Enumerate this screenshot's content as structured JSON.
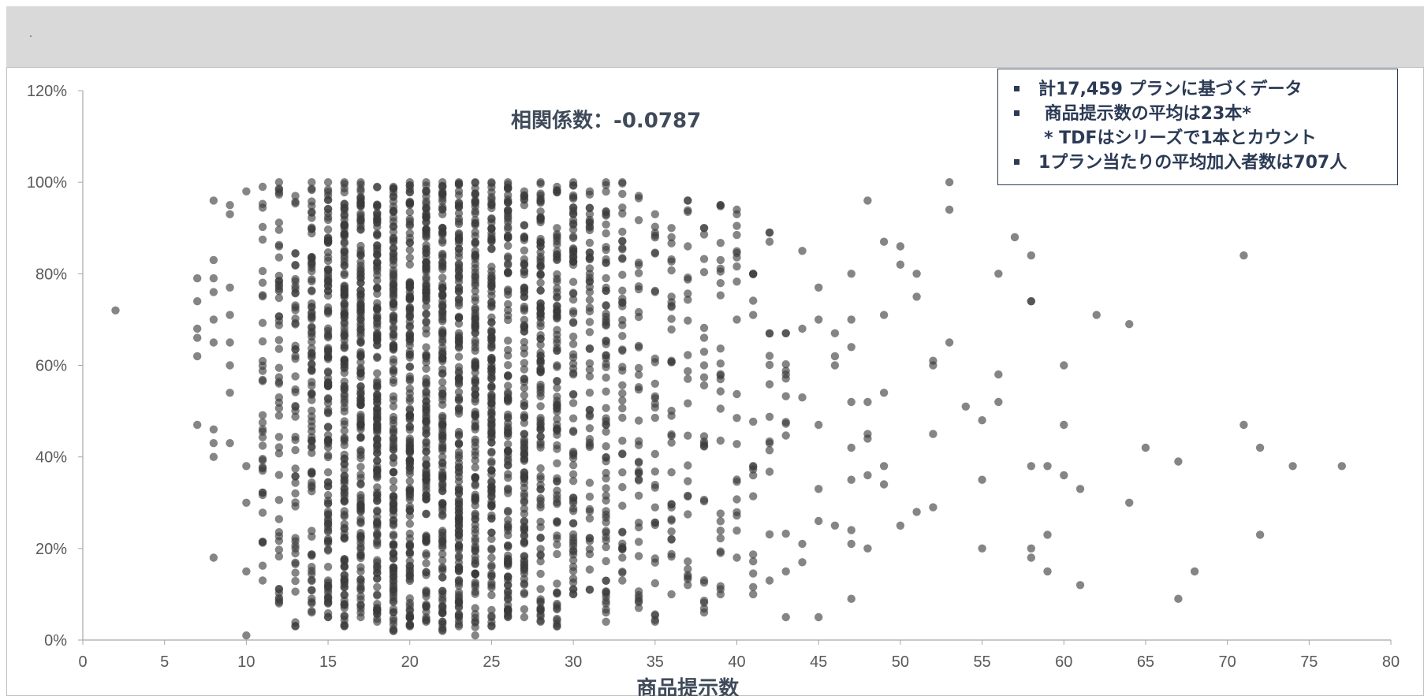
{
  "chart_data": {
    "type": "scatter",
    "title": "",
    "xlabel": "商品提示数",
    "ylabel": "",
    "xlim": [
      0,
      80
    ],
    "ylim": [
      0,
      1.2
    ],
    "x_ticks": [
      "0",
      "5",
      "10",
      "15",
      "20",
      "25",
      "30",
      "35",
      "40",
      "45",
      "50",
      "55",
      "60",
      "65",
      "70",
      "75",
      "80"
    ],
    "y_ticks": [
      "0%",
      "20%",
      "40%",
      "60%",
      "80%",
      "100%",
      "120%"
    ],
    "annotation": "相関係数：-0.0787",
    "marker_color": "#3a3a3a",
    "grid": false,
    "legend": "none",
    "points_note_x": [
      2,
      7,
      8,
      9,
      10,
      11,
      12,
      13,
      14,
      15,
      16,
      17,
      18,
      19,
      20,
      21,
      22,
      23,
      24,
      25,
      26,
      27,
      28,
      29,
      30,
      31,
      32,
      33,
      34,
      35,
      36,
      37,
      38,
      39,
      40,
      41,
      42,
      43,
      44,
      45,
      46,
      47,
      48,
      49,
      50,
      51,
      52,
      53,
      54,
      55,
      56,
      57,
      58,
      59,
      60,
      61,
      62,
      64,
      65,
      67,
      68,
      71,
      72,
      74,
      77
    ],
    "sparse_points": [
      [
        2,
        0.72
      ],
      [
        7,
        0.79
      ],
      [
        7,
        0.74
      ],
      [
        7,
        0.68
      ],
      [
        7,
        0.66
      ],
      [
        7,
        0.62
      ],
      [
        7,
        0.47
      ],
      [
        8,
        0.96
      ],
      [
        8,
        0.83
      ],
      [
        8,
        0.79
      ],
      [
        8,
        0.76
      ],
      [
        8,
        0.7
      ],
      [
        8,
        0.65
      ],
      [
        8,
        0.46
      ],
      [
        8,
        0.43
      ],
      [
        8,
        0.4
      ],
      [
        8,
        0.18
      ],
      [
        9,
        0.95
      ],
      [
        9,
        0.93
      ],
      [
        9,
        0.77
      ],
      [
        9,
        0.71
      ],
      [
        9,
        0.65
      ],
      [
        9,
        0.6
      ],
      [
        9,
        0.54
      ],
      [
        9,
        0.43
      ],
      [
        10,
        0.98
      ],
      [
        10,
        0.01
      ],
      [
        10,
        0.15
      ],
      [
        10,
        0.3
      ],
      [
        10,
        0.38
      ],
      [
        36,
        0.88
      ],
      [
        36,
        0.75
      ],
      [
        37,
        0.96
      ],
      [
        37,
        0.86
      ],
      [
        38,
        0.9
      ],
      [
        38,
        0.6
      ],
      [
        39,
        0.95
      ],
      [
        39,
        0.83
      ],
      [
        40,
        0.93
      ],
      [
        40,
        0.7
      ],
      [
        41,
        0.8
      ],
      [
        41,
        0.71
      ],
      [
        42,
        0.89
      ],
      [
        42,
        0.87
      ],
      [
        42,
        0.67
      ],
      [
        43,
        0.67
      ],
      [
        43,
        0.58
      ],
      [
        44,
        0.85
      ],
      [
        44,
        0.68
      ],
      [
        44,
        0.53
      ],
      [
        44,
        0.21
      ],
      [
        44,
        0.17
      ],
      [
        45,
        0.77
      ],
      [
        45,
        0.7
      ],
      [
        45,
        0.47
      ],
      [
        45,
        0.33
      ],
      [
        45,
        0.26
      ],
      [
        45,
        0.05
      ],
      [
        43,
        0.05
      ],
      [
        46,
        0.67
      ],
      [
        46,
        0.62
      ],
      [
        46,
        0.6
      ],
      [
        46,
        0.25
      ],
      [
        47,
        0.8
      ],
      [
        47,
        0.7
      ],
      [
        47,
        0.64
      ],
      [
        47,
        0.52
      ],
      [
        47,
        0.42
      ],
      [
        47,
        0.35
      ],
      [
        47,
        0.24
      ],
      [
        47,
        0.21
      ],
      [
        47,
        0.09
      ],
      [
        48,
        0.96
      ],
      [
        48,
        0.52
      ],
      [
        48,
        0.45
      ],
      [
        48,
        0.44
      ],
      [
        48,
        0.36
      ],
      [
        48,
        0.2
      ],
      [
        49,
        0.87
      ],
      [
        49,
        0.71
      ],
      [
        49,
        0.54
      ],
      [
        49,
        0.38
      ],
      [
        49,
        0.34
      ],
      [
        50,
        0.86
      ],
      [
        50,
        0.82
      ],
      [
        50,
        0.25
      ],
      [
        51,
        0.8
      ],
      [
        51,
        0.75
      ],
      [
        51,
        0.28
      ],
      [
        52,
        0.61
      ],
      [
        52,
        0.6
      ],
      [
        52,
        0.45
      ],
      [
        52,
        0.29
      ],
      [
        53,
        1.0
      ],
      [
        53,
        0.94
      ],
      [
        53,
        0.65
      ],
      [
        54,
        0.51
      ],
      [
        55,
        0.48
      ],
      [
        55,
        0.35
      ],
      [
        55,
        0.2
      ],
      [
        56,
        0.8
      ],
      [
        56,
        0.58
      ],
      [
        56,
        0.52
      ],
      [
        57,
        0.88
      ],
      [
        58,
        0.84
      ],
      [
        58,
        0.74
      ],
      [
        58,
        0.74
      ],
      [
        58,
        0.38
      ],
      [
        58,
        0.2
      ],
      [
        58,
        0.18
      ],
      [
        59,
        0.38
      ],
      [
        59,
        0.23
      ],
      [
        59,
        0.15
      ],
      [
        60,
        0.6
      ],
      [
        60,
        0.47
      ],
      [
        60,
        0.36
      ],
      [
        61,
        0.33
      ],
      [
        61,
        0.12
      ],
      [
        62,
        0.71
      ],
      [
        64,
        0.69
      ],
      [
        64,
        0.3
      ],
      [
        65,
        0.42
      ],
      [
        67,
        0.39
      ],
      [
        67,
        0.09
      ],
      [
        68,
        0.15
      ],
      [
        71,
        0.84
      ],
      [
        71,
        0.47
      ],
      [
        72,
        0.42
      ],
      [
        72,
        0.23
      ],
      [
        74,
        0.38
      ],
      [
        77,
        0.38
      ]
    ],
    "dense_columns": [
      {
        "x": 11,
        "count": 34,
        "range": [
          0.13,
          0.99
        ]
      },
      {
        "x": 12,
        "count": 48,
        "range": [
          0.08,
          1.0
        ]
      },
      {
        "x": 13,
        "count": 52,
        "range": [
          0.03,
          0.97
        ]
      },
      {
        "x": 14,
        "count": 90,
        "range": [
          0.06,
          1.0
        ]
      },
      {
        "x": 15,
        "count": 120,
        "range": [
          0.05,
          1.0
        ]
      },
      {
        "x": 16,
        "count": 150,
        "range": [
          0.03,
          1.0
        ]
      },
      {
        "x": 17,
        "count": 150,
        "range": [
          0.05,
          1.0
        ]
      },
      {
        "x": 18,
        "count": 150,
        "range": [
          0.04,
          0.99
        ]
      },
      {
        "x": 19,
        "count": 150,
        "range": [
          0.02,
          0.99
        ]
      },
      {
        "x": 20,
        "count": 150,
        "range": [
          0.03,
          1.0
        ]
      },
      {
        "x": 21,
        "count": 150,
        "range": [
          0.04,
          1.0
        ]
      },
      {
        "x": 22,
        "count": 150,
        "range": [
          0.02,
          1.0
        ]
      },
      {
        "x": 23,
        "count": 150,
        "range": [
          0.03,
          1.0
        ]
      },
      {
        "x": 24,
        "count": 140,
        "range": [
          0.01,
          1.0
        ]
      },
      {
        "x": 25,
        "count": 140,
        "range": [
          0.03,
          1.0
        ]
      },
      {
        "x": 26,
        "count": 120,
        "range": [
          0.05,
          1.0
        ]
      },
      {
        "x": 27,
        "count": 110,
        "range": [
          0.05,
          0.98
        ]
      },
      {
        "x": 28,
        "count": 110,
        "range": [
          0.04,
          1.0
        ]
      },
      {
        "x": 29,
        "count": 90,
        "range": [
          0.03,
          0.99
        ]
      },
      {
        "x": 30,
        "count": 80,
        "range": [
          0.1,
          1.0
        ]
      },
      {
        "x": 31,
        "count": 55,
        "range": [
          0.11,
          0.98
        ]
      },
      {
        "x": 32,
        "count": 70,
        "range": [
          0.04,
          1.0
        ]
      },
      {
        "x": 33,
        "count": 45,
        "range": [
          0.13,
          1.0
        ]
      },
      {
        "x": 34,
        "count": 35,
        "range": [
          0.07,
          0.97
        ]
      },
      {
        "x": 35,
        "count": 30,
        "range": [
          0.04,
          0.93
        ]
      },
      {
        "x": 36,
        "count": 28,
        "range": [
          0.1,
          0.9
        ]
      },
      {
        "x": 37,
        "count": 22,
        "range": [
          0.12,
          0.96
        ]
      },
      {
        "x": 38,
        "count": 20,
        "range": [
          0.06,
          0.9
        ]
      },
      {
        "x": 39,
        "count": 22,
        "range": [
          0.1,
          0.95
        ]
      },
      {
        "x": 40,
        "count": 16,
        "range": [
          0.18,
          0.94
        ]
      },
      {
        "x": 41,
        "count": 12,
        "range": [
          0.1,
          0.8
        ]
      },
      {
        "x": 42,
        "count": 10,
        "range": [
          0.13,
          0.89
        ]
      },
      {
        "x": 43,
        "count": 8,
        "range": [
          0.15,
          0.67
        ]
      }
    ]
  },
  "info_box": {
    "lines": [
      {
        "text": "計17,459 プランに基づくデータ",
        "bullet": true
      },
      {
        "text": " 商品提示数の平均は23本*",
        "bullet": true
      },
      {
        "text": "* TDFはシリーズで1本とカウント",
        "bullet": false
      },
      {
        "text": "1プラン当たりの平均加入者数は707人",
        "bullet": true
      }
    ]
  }
}
